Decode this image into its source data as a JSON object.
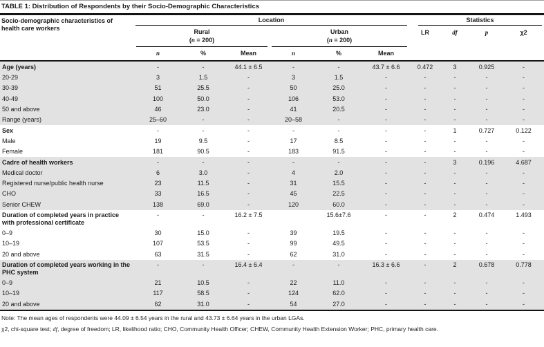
{
  "title": "TABLE 1: Distribution of Respondents by their Socio-Demographic Characteristics",
  "header": {
    "characteristics": "Socio-demographic characteristics of health care workers",
    "location": "Location",
    "statistics": "Statistics",
    "rural": {
      "name": "Rural"
    },
    "urban": {
      "name": "Urban"
    },
    "n_open": "(",
    "n_char": "n",
    "n_rest": " = 200)",
    "sub": {
      "n": "n",
      "pct": "%",
      "mean": "Mean"
    },
    "stats": {
      "lr": "LR",
      "df": "df",
      "p": "p",
      "chi2": "χ2"
    }
  },
  "table": {
    "rows": [
      {
        "label": "Age (years)",
        "bold": true,
        "shade": true,
        "cells": [
          "-",
          "-",
          "44.1 ± 6.5",
          "-",
          "-",
          "43.7 ± 6.6",
          "0.472",
          "3",
          "0.925",
          "-"
        ]
      },
      {
        "label": "20-29",
        "bold": false,
        "shade": true,
        "cells": [
          "3",
          "1.5",
          "-",
          "3",
          "1.5",
          "-",
          "-",
          "-",
          "-",
          "-"
        ]
      },
      {
        "label": "30-39",
        "bold": false,
        "shade": true,
        "cells": [
          "51",
          "25.5",
          "-",
          "50",
          "25.0",
          "-",
          "-",
          "-",
          "-",
          "-"
        ]
      },
      {
        "label": "40-49",
        "bold": false,
        "shade": true,
        "cells": [
          "100",
          "50.0",
          "-",
          "106",
          "53.0",
          "-",
          "-",
          "-",
          "-",
          "-"
        ]
      },
      {
        "label": "50 and above",
        "bold": false,
        "shade": true,
        "cells": [
          "46",
          "23.0",
          "-",
          "41",
          "20.5",
          "-",
          "-",
          "-",
          "-",
          "-"
        ]
      },
      {
        "label": "Range (years)",
        "bold": false,
        "shade": true,
        "cells": [
          "25–60",
          "-",
          "-",
          "20–58",
          "-",
          "-",
          "-",
          "-",
          "-",
          "-"
        ]
      },
      {
        "label": "Sex",
        "bold": true,
        "shade": false,
        "cells": [
          "-",
          "-",
          "-",
          "-",
          "-",
          "-",
          "-",
          "1",
          "0.727",
          "0.122"
        ]
      },
      {
        "label": "Male",
        "bold": false,
        "shade": false,
        "cells": [
          "19",
          "9.5",
          "-",
          "17",
          "8.5",
          "-",
          "-",
          "-",
          "-",
          "-"
        ]
      },
      {
        "label": "Female",
        "bold": false,
        "shade": false,
        "cells": [
          "181",
          "90.5",
          "-",
          "183",
          "91.5",
          "-",
          "-",
          "-",
          "-",
          "-"
        ]
      },
      {
        "label": "Cadre of health workers",
        "bold": true,
        "shade": true,
        "cells": [
          "-",
          "-",
          "-",
          "-",
          "-",
          "-",
          "-",
          "3",
          "0.196",
          "4.687"
        ]
      },
      {
        "label": "Medical doctor",
        "bold": false,
        "shade": true,
        "cells": [
          "6",
          "3.0",
          "-",
          "4",
          "2.0",
          "-",
          "-",
          "-",
          "-",
          "-"
        ]
      },
      {
        "label": "Registered nurse/public health nurse",
        "bold": false,
        "shade": true,
        "cells": [
          "23",
          "11.5",
          "-",
          "31",
          "15.5",
          "-",
          "-",
          "-",
          "-",
          "-"
        ]
      },
      {
        "label": "CHO",
        "bold": false,
        "shade": true,
        "cells": [
          "33",
          "16.5",
          "-",
          "45",
          "22.5",
          "-",
          "-",
          "-",
          "-",
          "-"
        ]
      },
      {
        "label": "Senior CHEW",
        "bold": false,
        "shade": true,
        "cells": [
          "138",
          "69.0",
          "-",
          "120",
          "60.0",
          "-",
          "-",
          "-",
          "-",
          "-"
        ]
      },
      {
        "label": "Duration of completed years in practice with professional certificate",
        "bold": true,
        "shade": false,
        "cells": [
          "-",
          "-",
          "16.2 ± 7.5",
          "",
          "15.6±7.6",
          "-",
          "-",
          "2",
          "0.474",
          "1.493"
        ]
      },
      {
        "label": "0–9",
        "bold": false,
        "shade": false,
        "cells": [
          "30",
          "15.0",
          "-",
          "39",
          "19.5",
          "-",
          "-",
          "-",
          "-",
          "-"
        ]
      },
      {
        "label": "10–19",
        "bold": false,
        "shade": false,
        "cells": [
          "107",
          "53.5",
          "-",
          "99",
          "49.5",
          "-",
          "-",
          "-",
          "-",
          "-"
        ]
      },
      {
        "label": "20 and above",
        "bold": false,
        "shade": false,
        "cells": [
          "63",
          "31.5",
          "-",
          "62",
          "31.0",
          "-",
          "-",
          "-",
          "-",
          "-"
        ]
      },
      {
        "label": "Duration of completed years working in the PHC system",
        "bold": true,
        "shade": true,
        "cells": [
          "-",
          "-",
          "16.4 ± 6.4",
          "-",
          "-",
          "16.3 ± 6.6",
          "-",
          "2",
          "0.678",
          "0.778"
        ]
      },
      {
        "label": "0–9",
        "bold": false,
        "shade": true,
        "cells": [
          "21",
          "10.5",
          "-",
          "22",
          "11.0",
          "-",
          "-",
          "-",
          "-",
          "-"
        ]
      },
      {
        "label": "10–19",
        "bold": false,
        "shade": true,
        "cells": [
          "117",
          "58.5",
          "-",
          "124",
          "62.0",
          "-",
          "-",
          "-",
          "-",
          "-"
        ]
      },
      {
        "label": "20 and above",
        "bold": false,
        "shade": true,
        "cells": [
          "62",
          "31.0",
          "-",
          "54",
          "27.0",
          "-",
          "-",
          "-",
          "-",
          "-"
        ]
      }
    ]
  },
  "notes": {
    "note1": "Note: The mean ages of respondents were 44.09 ± 6.54 years in the rural and 43.73 ± 6.64 years in the urban LGAs.",
    "note2_pre": "χ2, chi-square test; ",
    "note2_df": "df",
    "note2_post": ", degree of freedom; LR, likelihood ratio; CHO, Community Health Officer; CHEW, Community Health Extension Worker; PHC, primary health care."
  }
}
